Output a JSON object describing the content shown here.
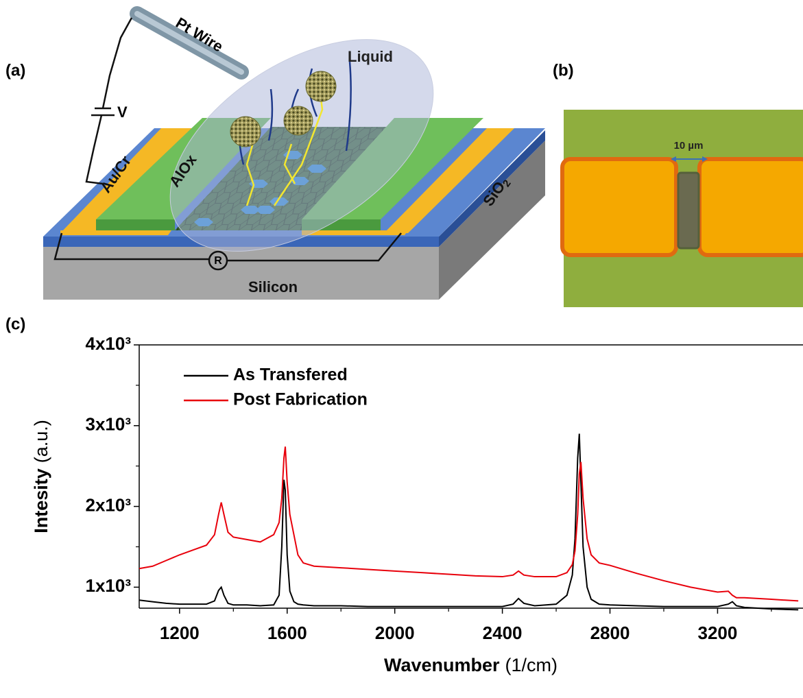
{
  "panel_labels": [
    "(a)",
    "(b)",
    "(c)"
  ],
  "schematic": {
    "pt_wire": "Pt Wire",
    "liquid": "Liquid",
    "voltage": "V",
    "contact": "Au/Cr",
    "dielectric": "AlOx",
    "oxide": "SiO",
    "oxide_subscript": "2",
    "substrate": "Silicon",
    "resistor": "R"
  },
  "micrograph": {
    "scale_bar": "10 µm"
  },
  "chart_data": {
    "type": "line",
    "x_label": "Wavenumber",
    "x_unit": "(1/cm)",
    "y_label": "Intesity",
    "y_unit": "(a.u.)",
    "x": [
      1050,
      1100,
      1150,
      1200,
      1250,
      1300,
      1330,
      1345,
      1355,
      1365,
      1380,
      1400,
      1450,
      1500,
      1550,
      1570,
      1580,
      1588,
      1593,
      1600,
      1610,
      1625,
      1640,
      1660,
      1700,
      1800,
      1900,
      2000,
      2100,
      2200,
      2300,
      2400,
      2440,
      2460,
      2480,
      2520,
      2600,
      2640,
      2660,
      2670,
      2680,
      2686,
      2692,
      2700,
      2715,
      2730,
      2760,
      2800,
      2900,
      3000,
      3100,
      3200,
      3240,
      3255,
      3270,
      3300,
      3400,
      3500
    ],
    "series": [
      {
        "name": "As Transfered",
        "color": "#000000",
        "values": [
          840,
          820,
          800,
          790,
          790,
          790,
          830,
          960,
          1000,
          900,
          800,
          780,
          780,
          770,
          780,
          900,
          1500,
          2330,
          2200,
          1400,
          950,
          820,
          790,
          780,
          770,
          770,
          760,
          760,
          760,
          760,
          760,
          760,
          790,
          860,
          800,
          770,
          790,
          900,
          1150,
          1600,
          2600,
          2900,
          2300,
          1500,
          1000,
          850,
          790,
          780,
          770,
          760,
          760,
          760,
          790,
          820,
          770,
          750,
          730,
          720
        ]
      },
      {
        "name": "Post Fabrication",
        "color": "#e8000b",
        "values": [
          1230,
          1260,
          1330,
          1400,
          1460,
          1520,
          1650,
          1900,
          2050,
          1900,
          1680,
          1620,
          1590,
          1560,
          1650,
          1800,
          2100,
          2600,
          2740,
          2300,
          1900,
          1650,
          1400,
          1300,
          1260,
          1240,
          1220,
          1200,
          1180,
          1160,
          1140,
          1130,
          1150,
          1200,
          1150,
          1130,
          1130,
          1180,
          1280,
          1450,
          1900,
          2400,
          2550,
          2100,
          1600,
          1400,
          1300,
          1270,
          1170,
          1080,
          1000,
          940,
          950,
          900,
          870,
          870,
          850,
          830
        ]
      }
    ],
    "xlim": [
      1050,
      3515
    ],
    "xticks": [
      1200,
      1600,
      2000,
      2400,
      2800,
      3200
    ],
    "xticks_minor": [
      1400,
      1800,
      2200,
      2600,
      3000,
      3400
    ],
    "ylim": [
      740,
      4000
    ],
    "yticks": [
      {
        "value": 1000,
        "label": "1x10³"
      },
      {
        "value": 2000,
        "label": "2x10³"
      },
      {
        "value": 3000,
        "label": "3x10³"
      },
      {
        "value": 4000,
        "label": "4x10³"
      }
    ],
    "yticks_minor": [
      1500,
      2500,
      3500
    ],
    "legend": "upper left"
  }
}
